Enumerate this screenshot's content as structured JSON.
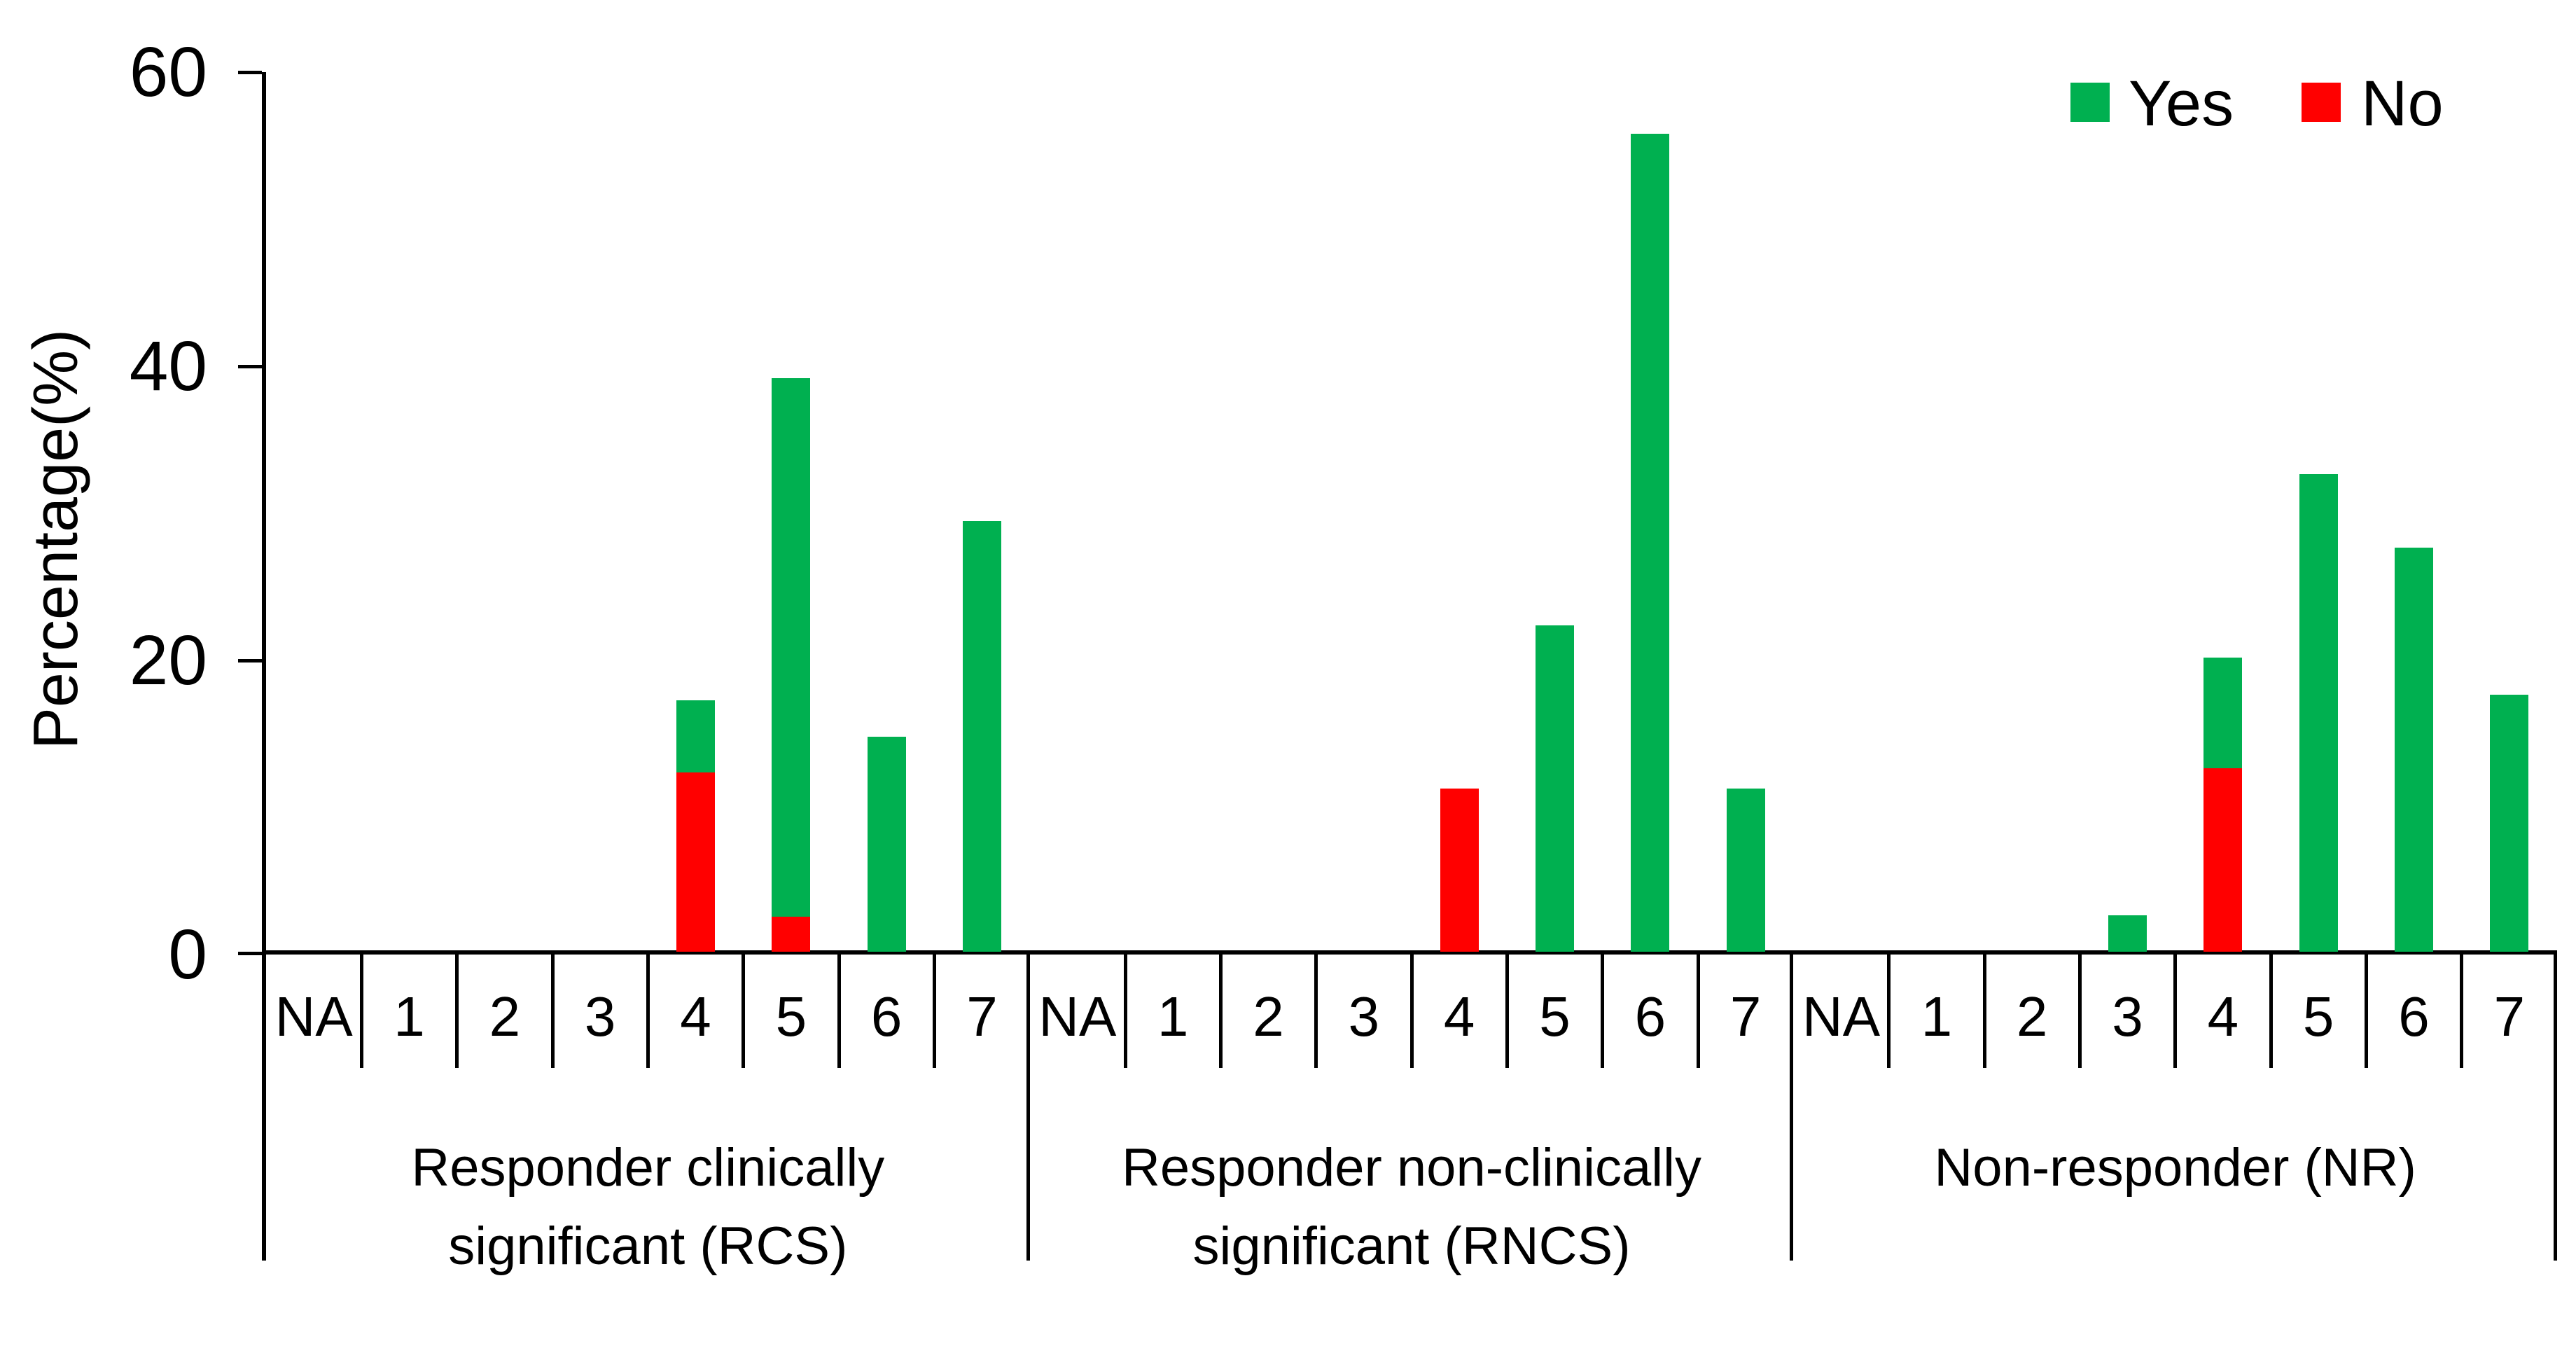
{
  "figure": {
    "background": "#ffffff",
    "axis_color": "#000000",
    "text_color": "#000000"
  },
  "legend": {
    "items": [
      {
        "label": "Yes",
        "color": "#00B050"
      },
      {
        "label": "No",
        "color": "#FF0000"
      }
    ]
  },
  "chart_data": {
    "type": "bar",
    "stacked": true,
    "title": "",
    "xlabel": "",
    "ylabel": "Percentage(%)",
    "ylim": [
      0,
      60
    ],
    "yticks": [
      0,
      20,
      40,
      60
    ],
    "grid": false,
    "legend_position": "top-right",
    "legend": [
      {
        "name": "Yes",
        "color": "#00B050"
      },
      {
        "name": "No",
        "color": "#FF0000"
      }
    ],
    "categories": [
      "NA",
      "1",
      "2",
      "3",
      "4",
      "5",
      "6",
      "7"
    ],
    "groups": [
      {
        "label": "Responder clinically significant (RCS)",
        "label_lines": [
          "Responder clinically",
          "significant (RCS)"
        ],
        "series": [
          {
            "name": "No",
            "color": "#FF0000",
            "values": [
              0,
              0,
              0,
              0,
              12.2,
              2.4,
              0,
              0
            ]
          },
          {
            "name": "Yes",
            "color": "#00B050",
            "values": [
              0,
              0,
              0,
              0,
              4.9,
              36.6,
              14.6,
              29.3
            ]
          }
        ]
      },
      {
        "label": "Responder non-clinically significant (RNCS)",
        "label_lines": [
          "Responder non-clinically",
          "significant (RNCS)"
        ],
        "series": [
          {
            "name": "No",
            "color": "#FF0000",
            "values": [
              0,
              0,
              0,
              0,
              11.1,
              0,
              0,
              0
            ]
          },
          {
            "name": "Yes",
            "color": "#00B050",
            "values": [
              0,
              0,
              0,
              0,
              0,
              22.2,
              55.6,
              11.1
            ]
          }
        ]
      },
      {
        "label": "Non-responder (NR)",
        "label_lines": [
          "Non-responder (NR)"
        ],
        "series": [
          {
            "name": "No",
            "color": "#FF0000",
            "values": [
              0,
              0,
              0,
              0,
              12.5,
              0,
              0,
              0
            ]
          },
          {
            "name": "Yes",
            "color": "#00B050",
            "values": [
              0,
              0,
              0,
              2.5,
              7.5,
              32.5,
              27.5,
              17.5
            ]
          }
        ]
      }
    ]
  }
}
